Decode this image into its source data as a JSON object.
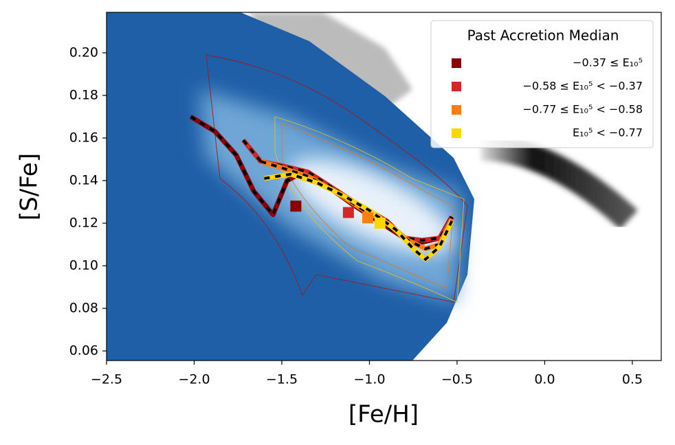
{
  "chart_data": {
    "type": "line",
    "xlabel": "[Fe/H]",
    "ylabel": "[S/Fe]",
    "xlim": [
      -2.5,
      0.665
    ],
    "ylim": [
      0.0555,
      0.219
    ],
    "xticks": [
      {
        "value": -2.5,
        "label": "−2.5"
      },
      {
        "value": -2.0,
        "label": "−2.0"
      },
      {
        "value": -1.5,
        "label": "−1.5"
      },
      {
        "value": -1.0,
        "label": "−1.0"
      },
      {
        "value": -0.5,
        "label": "−0.5"
      },
      {
        "value": 0.0,
        "label": "0.0"
      },
      0.5
    ],
    "yticks": [
      0.06,
      0.08,
      {
        "value": 0.1,
        "label": "0.10"
      },
      0.12,
      0.14,
      0.16,
      0.18,
      {
        "value": 0.2,
        "label": "0.20"
      }
    ],
    "legend_title": "Past Accretion Median",
    "legend_position": "upper right",
    "series": [
      {
        "name": "−0.37 ≤ E₁₀⁵",
        "color": "#8b0000",
        "x": [
          -2.02,
          -1.88,
          -1.76,
          -1.66,
          -1.55,
          -1.47,
          -1.4,
          -1.25,
          -1.1,
          -0.95,
          -0.8,
          -0.7,
          -0.6,
          -0.53
        ],
        "values": [
          0.17,
          0.163,
          0.152,
          0.135,
          0.124,
          0.14,
          0.143,
          0.138,
          0.129,
          0.121,
          0.113,
          0.111,
          0.113,
          0.123
        ],
        "marker": {
          "x": -1.42,
          "y": 0.128
        }
      },
      {
        "name": "−0.58 ≤ E₁₀⁵ < −0.37",
        "color": "#d62728",
        "x": [
          -1.72,
          -1.62,
          -1.5,
          -1.35,
          -1.2,
          -1.05,
          -0.9,
          -0.8,
          -0.7,
          -0.6,
          -0.53
        ],
        "values": [
          0.159,
          0.149,
          0.147,
          0.144,
          0.136,
          0.128,
          0.121,
          0.113,
          0.112,
          0.113,
          0.122
        ],
        "marker": {
          "x": -1.12,
          "y": 0.125
        }
      },
      {
        "name": "−0.77 ≤ E₁₀⁵ < −0.58",
        "color": "#ff7f0e",
        "x": [
          -1.62,
          -1.5,
          -1.35,
          -1.2,
          -1.05,
          -0.9,
          -0.78,
          -0.68,
          -0.6,
          -0.53
        ],
        "values": [
          0.149,
          0.146,
          0.142,
          0.135,
          0.127,
          0.12,
          0.112,
          0.108,
          0.11,
          0.122
        ],
        "marker": {
          "x": -1.01,
          "y": 0.1225
        }
      },
      {
        "name": "E₁₀⁵ < −0.77",
        "color": "#ffd700",
        "x": [
          -1.6,
          -1.45,
          -1.3,
          -1.15,
          -1.0,
          -0.85,
          -0.75,
          -0.68,
          -0.6,
          -0.53
        ],
        "values": [
          0.141,
          0.143,
          0.139,
          0.133,
          0.126,
          0.117,
          0.108,
          0.103,
          0.109,
          0.121
        ],
        "marker": {
          "x": -0.94,
          "y": 0.12
        }
      }
    ]
  }
}
